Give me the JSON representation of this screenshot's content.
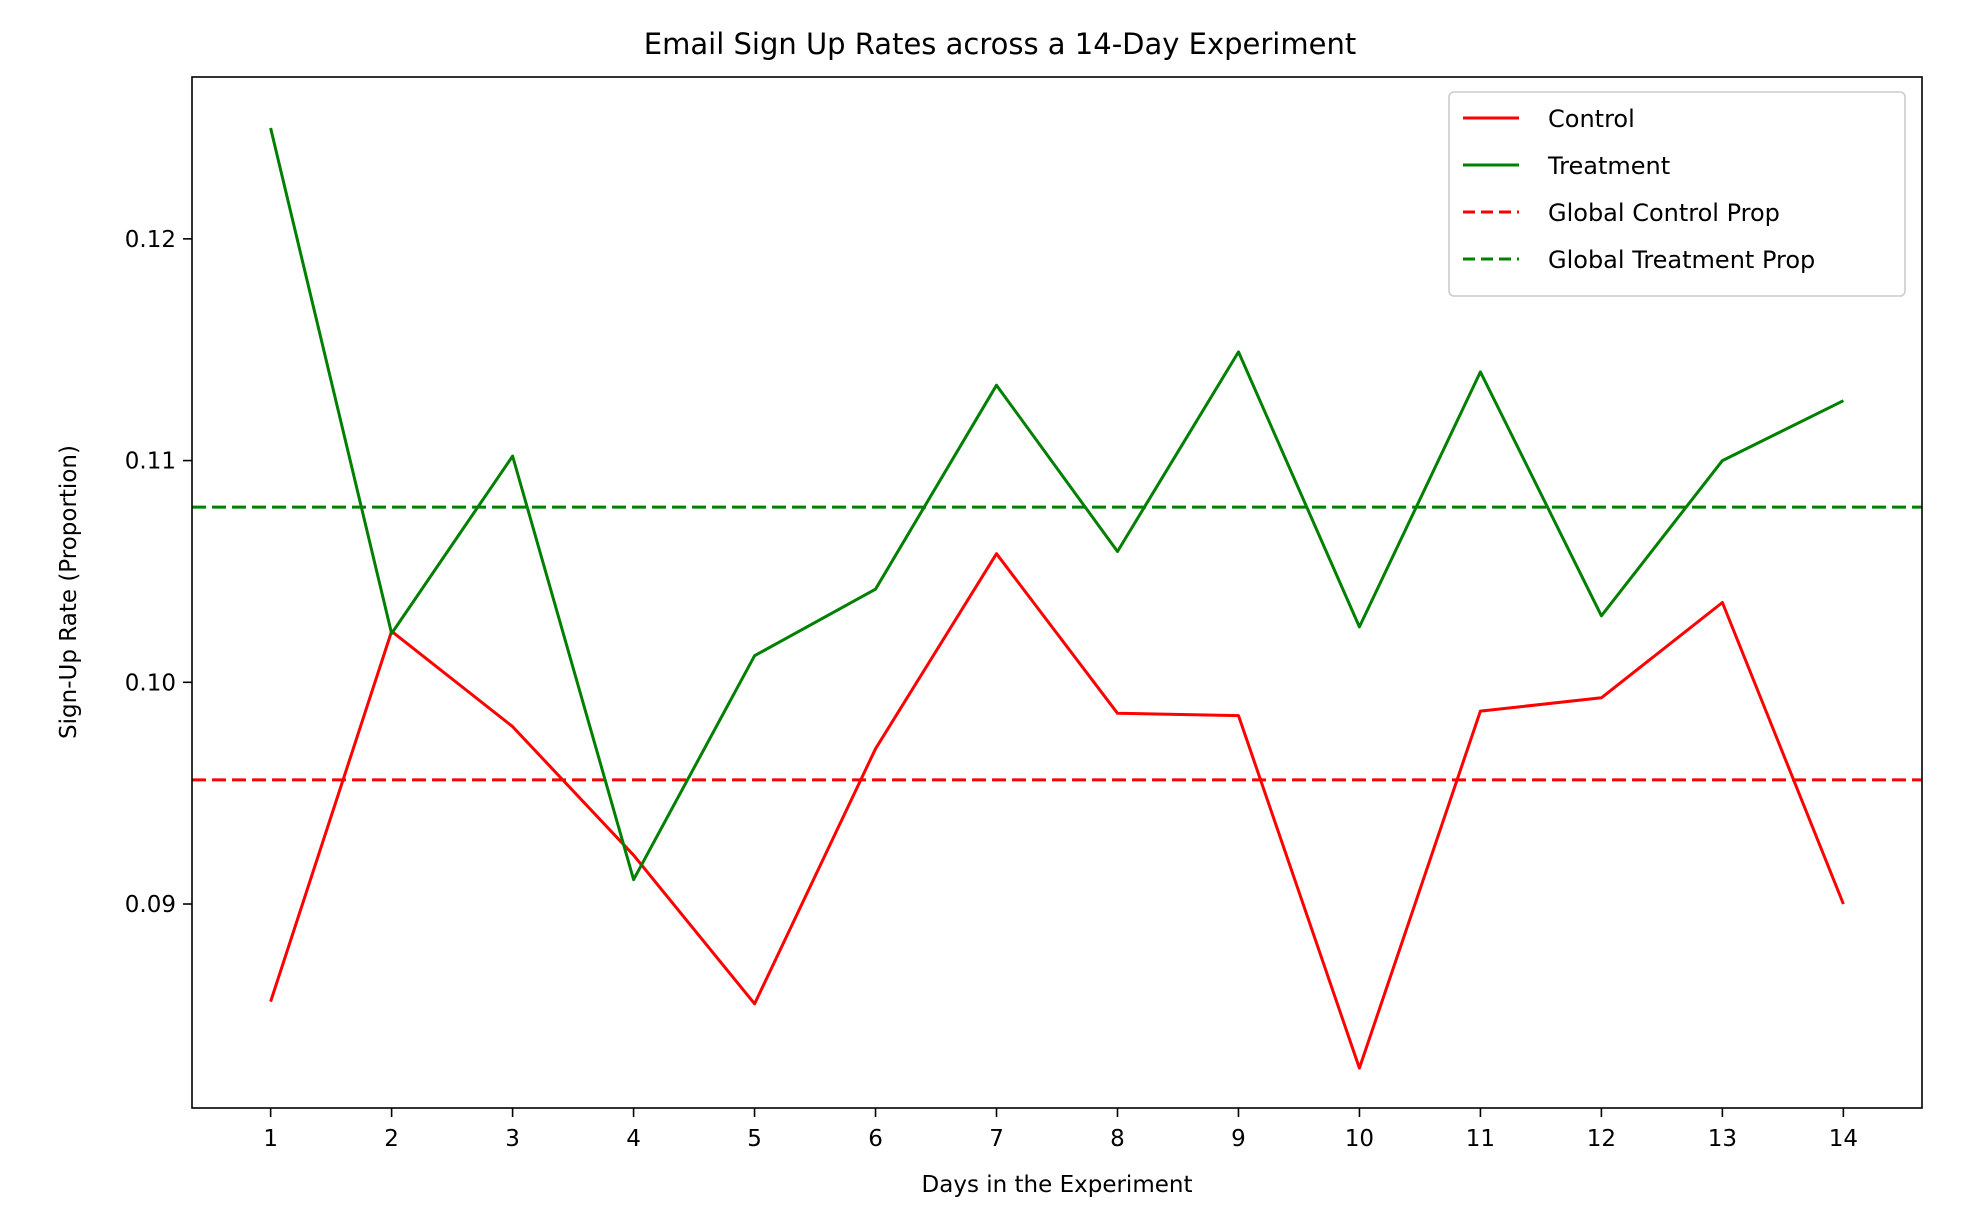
{
  "chart_data": {
    "type": "line",
    "title": "Email Sign Up Rates across a 14-Day Experiment",
    "xlabel": "Days in the Experiment",
    "ylabel": "Sign-Up Rate (Proportion)",
    "x": [
      1,
      2,
      3,
      4,
      5,
      6,
      7,
      8,
      9,
      10,
      11,
      12,
      13,
      14
    ],
    "xticks": [
      "1",
      "2",
      "3",
      "4",
      "5",
      "6",
      "7",
      "8",
      "9",
      "10",
      "11",
      "12",
      "13",
      "14"
    ],
    "yticks": [
      "0.09",
      "0.10",
      "0.11",
      "0.12"
    ],
    "ytick_values": [
      0.09,
      0.1,
      0.11,
      0.12
    ],
    "xlim": [
      0.35,
      14.65
    ],
    "ylim": [
      0.0808,
      0.1273
    ],
    "grid": false,
    "legend_position": "top-right",
    "series": [
      {
        "name": "Control",
        "color": "#ff0000",
        "style": "solid",
        "values": [
          0.0856,
          0.1023,
          0.098,
          0.0922,
          0.0855,
          0.097,
          0.1058,
          0.0986,
          0.0985,
          0.0826,
          0.0987,
          0.0993,
          0.1036,
          0.09
        ]
      },
      {
        "name": "Treatment",
        "color": "#008000",
        "style": "solid",
        "values": [
          0.125,
          0.1022,
          0.1102,
          0.0911,
          0.1012,
          0.1042,
          0.1134,
          0.1059,
          0.1149,
          0.1025,
          0.114,
          0.103,
          0.11,
          0.1127
        ]
      }
    ],
    "reference_lines": [
      {
        "name": "Global Control Prop",
        "color": "#ff0000",
        "style": "dashed",
        "value": 0.0956
      },
      {
        "name": "Global Treatment Prop",
        "color": "#008000",
        "style": "dashed",
        "value": 0.1079
      }
    ]
  }
}
